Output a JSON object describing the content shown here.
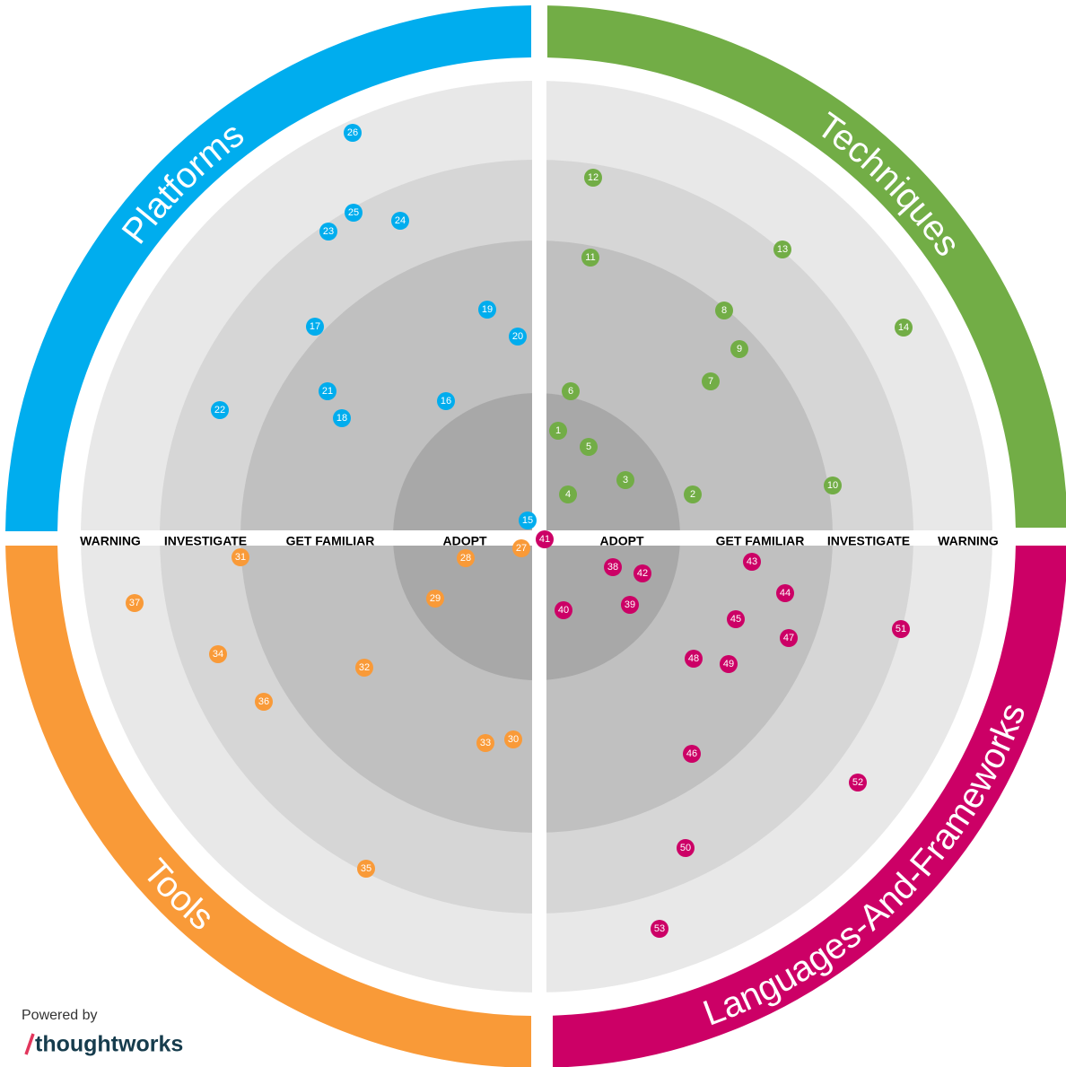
{
  "rings": [
    "ADOPT",
    "GET FAMILIAR",
    "INVESTIGATE",
    "WARNING"
  ],
  "quadrants": [
    {
      "name": "Techniques",
      "color": "#72ad46",
      "blips": [
        "1",
        "2",
        "3",
        "4",
        "5",
        "6",
        "7",
        "8",
        "9",
        "10",
        "11",
        "12",
        "13",
        "14"
      ]
    },
    {
      "name": "Platforms",
      "color": "#00adee",
      "blips": [
        "15",
        "16",
        "17",
        "18",
        "19",
        "20",
        "21",
        "22",
        "23",
        "24",
        "25",
        "26"
      ]
    },
    {
      "name": "Tools",
      "color": "#f99a38",
      "blips": [
        "27",
        "28",
        "29",
        "30",
        "31",
        "32",
        "33",
        "34",
        "35",
        "36",
        "37"
      ]
    },
    {
      "name": "Languages-And-Frameworks",
      "color": "#cc0066",
      "blips": [
        "38",
        "39",
        "40",
        "41",
        "42",
        "43",
        "44",
        "45",
        "46",
        "47",
        "48",
        "49",
        "50",
        "51",
        "52",
        "53"
      ]
    }
  ],
  "footer": {
    "powered_by": "Powered by",
    "brand": "thoughtworks"
  }
}
